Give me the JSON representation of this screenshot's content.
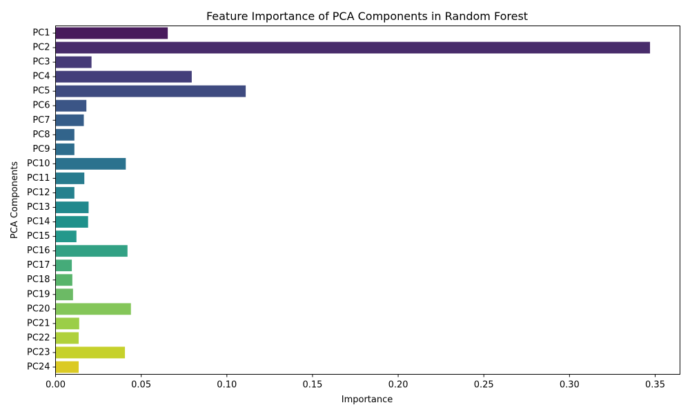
{
  "chart_data": {
    "type": "bar",
    "orientation": "horizontal",
    "title": "Feature Importance of PCA Components in Random Forest",
    "xlabel": "Importance",
    "ylabel": "PCA Components",
    "categories": [
      "PC1",
      "PC2",
      "PC3",
      "PC4",
      "PC5",
      "PC6",
      "PC7",
      "PC8",
      "PC9",
      "PC10",
      "PC11",
      "PC12",
      "PC13",
      "PC14",
      "PC15",
      "PC16",
      "PC17",
      "PC18",
      "PC19",
      "PC20",
      "PC21",
      "PC22",
      "PC23",
      "PC24"
    ],
    "values": [
      0.0655,
      0.347,
      0.021,
      0.0795,
      0.111,
      0.018,
      0.0165,
      0.011,
      0.011,
      0.041,
      0.0168,
      0.011,
      0.0193,
      0.019,
      0.0122,
      0.042,
      0.0095,
      0.0098,
      0.0102,
      0.044,
      0.0138,
      0.0135,
      0.0405,
      0.0135
    ],
    "xlim": [
      0,
      0.3645
    ],
    "xticks": [
      0.0,
      0.05,
      0.1,
      0.15,
      0.2,
      0.25,
      0.3,
      0.35
    ],
    "xtick_labels": [
      "0.00",
      "0.05",
      "0.10",
      "0.15",
      "0.20",
      "0.25",
      "0.30",
      "0.35"
    ],
    "grid": false,
    "palette": "viridis",
    "colors": [
      "#481b5c",
      "#482c6b",
      "#463a77",
      "#433f7a",
      "#3f4b80",
      "#3b5586",
      "#365d89",
      "#32648b",
      "#2e6d8d",
      "#2b728e",
      "#287b8e",
      "#25818e",
      "#21898d",
      "#1f918b",
      "#24988b",
      "#32a184",
      "#45ab79",
      "#58b46b",
      "#6cba65",
      "#84c659",
      "#9bce48",
      "#b0d13b",
      "#c6d12b",
      "#dbca24"
    ]
  }
}
